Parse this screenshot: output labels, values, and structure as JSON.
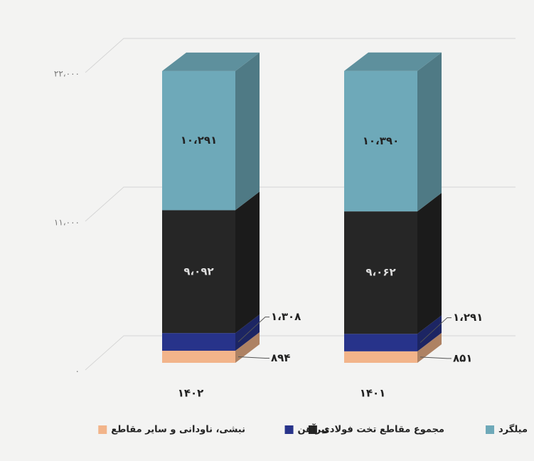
{
  "chart_data": {
    "type": "bar3d_stacked",
    "categories": [
      "۱۴۰۲",
      "۱۴۰۱"
    ],
    "series": [
      {
        "name": "میلگرد",
        "color": "#6ea9b9",
        "values": [
          10291,
          10390
        ],
        "value_labels": [
          "۱۰،۲۹۱",
          "۱۰،۳۹۰"
        ]
      },
      {
        "name": "مجموع مقاطع تخت فولادی",
        "color": "#262626",
        "values": [
          9092,
          9062
        ],
        "value_labels": [
          "۹،۰۹۲",
          "۹،۰۶۲"
        ]
      },
      {
        "name": "تیرآهن",
        "color": "#27338a",
        "values": [
          1308,
          1291
        ],
        "value_labels": [
          "۱،۳۰۸",
          "۱،۲۹۱"
        ]
      },
      {
        "name": "نبشی، ناودانی و سایر مقاطع",
        "color": "#f2b48a",
        "values": [
          894,
          851
        ],
        "value_labels": [
          "۸۹۴",
          "۸۵۱"
        ]
      }
    ],
    "ylim": [
      0,
      22000
    ],
    "yticks": [
      {
        "value": 0,
        "label": "۰"
      },
      {
        "value": 11000,
        "label": "۱۱،۰۰۰"
      },
      {
        "value": 22000,
        "label": "۲۲،۰۰۰"
      }
    ],
    "grid": true
  }
}
